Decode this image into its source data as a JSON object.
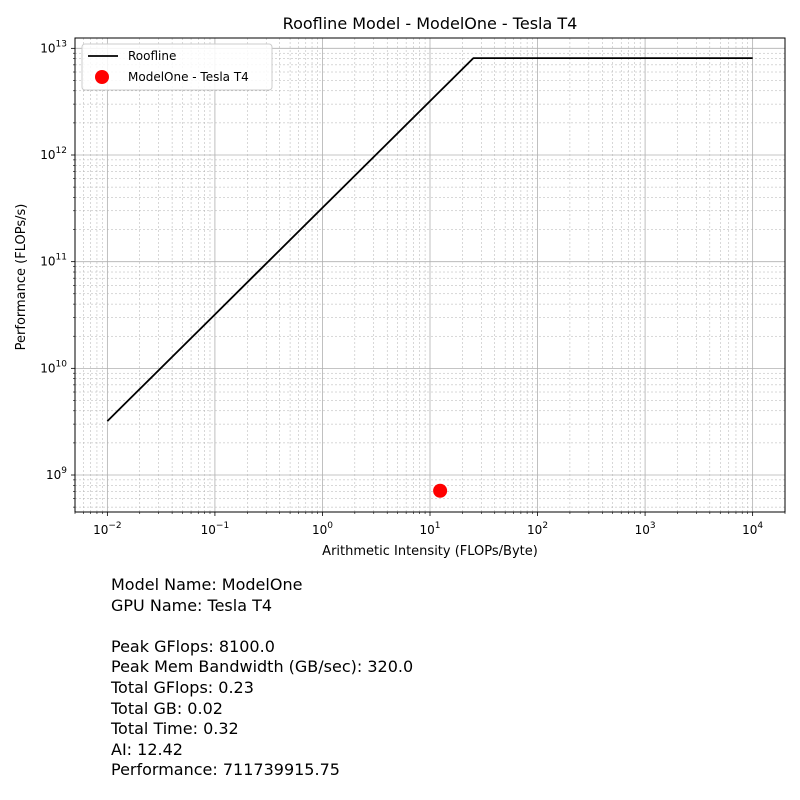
{
  "chart_data": {
    "type": "line",
    "title": "Roofline Model - ModelOne - Tesla T4",
    "xlabel": "Arithmetic Intensity (FLOPs/Byte)",
    "ylabel": "Performance (FLOPs/s)",
    "x_scale": "log",
    "y_scale": "log",
    "xlim": [
      0.005,
      20000
    ],
    "ylim": [
      450000000.0,
      12500000000000.0
    ],
    "x_ticks": [
      {
        "value": 0.01,
        "base": "10",
        "exp": "−2"
      },
      {
        "value": 0.1,
        "base": "10",
        "exp": "−1"
      },
      {
        "value": 1,
        "base": "10",
        "exp": "0"
      },
      {
        "value": 10,
        "base": "10",
        "exp": "1"
      },
      {
        "value": 100,
        "base": "10",
        "exp": "2"
      },
      {
        "value": 1000,
        "base": "10",
        "exp": "3"
      },
      {
        "value": 10000,
        "base": "10",
        "exp": "4"
      }
    ],
    "y_ticks": [
      {
        "value": 1000000000.0,
        "base": "10",
        "exp": "9"
      },
      {
        "value": 10000000000.0,
        "base": "10",
        "exp": "10"
      },
      {
        "value": 100000000000.0,
        "base": "10",
        "exp": "11"
      },
      {
        "value": 1000000000000.0,
        "base": "10",
        "exp": "12"
      },
      {
        "value": 10000000000000.0,
        "base": "10",
        "exp": "13"
      }
    ],
    "grid": true,
    "legend_position": "top-left",
    "series": [
      {
        "name": "Roofline",
        "kind": "line",
        "color": "#000000",
        "x": [
          0.01,
          0.1,
          1,
          10,
          25.3125,
          30,
          100,
          1000,
          10000
        ],
        "y": [
          3200000000.0,
          32000000000.0,
          320000000000.0,
          3200000000000.0,
          8100000000000.0,
          8100000000000.0,
          8100000000000.0,
          8100000000000.0,
          8100000000000.0
        ]
      },
      {
        "name": "ModelOne - Tesla T4",
        "kind": "scatter",
        "color": "#ff0000",
        "x": [
          12.42
        ],
        "y": [
          711739915.75
        ]
      }
    ]
  },
  "info": {
    "model_name": "Model Name: ModelOne",
    "gpu_name": "GPU Name: Tesla T4",
    "peak_gflops": "Peak GFlops: 8100.0",
    "peak_bw": "Peak Mem Bandwidth (GB/sec): 320.0",
    "total_gflops": "Total GFlops: 0.23",
    "total_gb": "Total GB: 0.02",
    "total_time": "Total Time: 0.32",
    "ai": "AI: 12.42",
    "performance": "Performance: 711739915.75"
  }
}
